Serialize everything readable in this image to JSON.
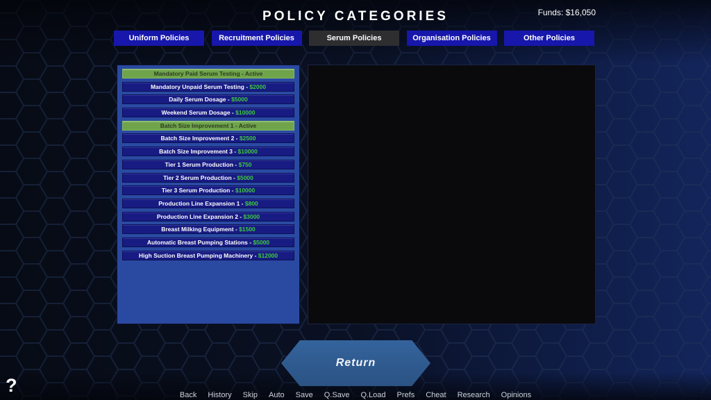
{
  "header": {
    "title": "POLICY CATEGORIES",
    "funds": "Funds: $16,050"
  },
  "tabs": [
    {
      "label": "Uniform Policies",
      "selected": false
    },
    {
      "label": "Recruitment Policies",
      "selected": false
    },
    {
      "label": "Serum Policies",
      "selected": true
    },
    {
      "label": "Organisation Policies",
      "selected": false
    },
    {
      "label": "Other Policies",
      "selected": false
    }
  ],
  "ui": {
    "separator": " - "
  },
  "policies": [
    {
      "name": "Mandatory Paid Serum Testing",
      "status": "Active",
      "active": true
    },
    {
      "name": "Mandatory Unpaid Serum Testing",
      "price": "$2000",
      "active": false
    },
    {
      "name": "Daily Serum Dosage",
      "price": "$5000",
      "active": false
    },
    {
      "name": "Weekend Serum Dosage",
      "price": "$10000",
      "active": false
    },
    {
      "name": "Batch Size Improvement 1",
      "status": "Active",
      "active": true
    },
    {
      "name": "Batch Size Improvement 2",
      "price": "$2500",
      "active": false
    },
    {
      "name": "Batch Size Improvement 3",
      "price": "$10000",
      "active": false
    },
    {
      "name": "Tier 1 Serum Production",
      "price": "$750",
      "active": false
    },
    {
      "name": "Tier 2 Serum Production",
      "price": "$5000",
      "active": false
    },
    {
      "name": "Tier 3 Serum Production",
      "price": "$10000",
      "active": false
    },
    {
      "name": "Production Line Expansion 1",
      "price": "$800",
      "active": false
    },
    {
      "name": "Production Line Expansion 2",
      "price": "$3000",
      "active": false
    },
    {
      "name": "Breast Milking Equipment",
      "price": "$1500",
      "active": false
    },
    {
      "name": "Automatic Breast Pumping Stations",
      "price": "$5000",
      "active": false
    },
    {
      "name": "High Suction Breast Pumping Machinery",
      "price": "$12000",
      "active": false
    }
  ],
  "return_button": {
    "label": "Return"
  },
  "quick_menu": [
    "Back",
    "History",
    "Skip",
    "Auto",
    "Save",
    "Q.Save",
    "Q.Load",
    "Prefs",
    "Cheat",
    "Research",
    "Opinions"
  ],
  "help": {
    "label": "?"
  },
  "colors": {
    "tab_blue": "#1717ac",
    "tab_selected": "#2e2e30",
    "panel_blue": "#2a4aa2",
    "button_navy": "#171b82",
    "active_green": "#6fa44b",
    "price_green": "#3ecb3e",
    "return_blue": "#30609a",
    "background_navy": "#0a1124"
  }
}
